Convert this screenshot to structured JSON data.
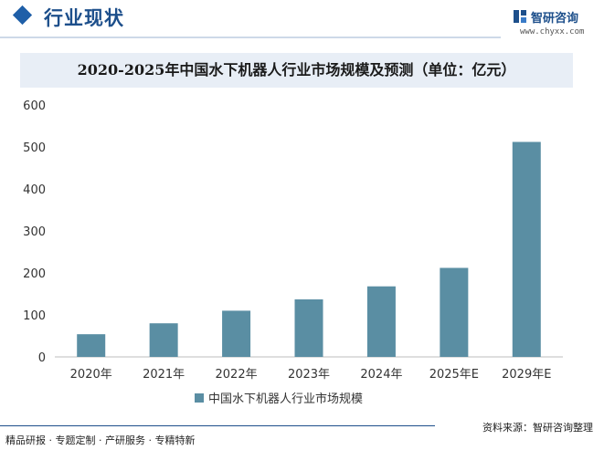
{
  "header": {
    "title": "行业现状",
    "logo_text": "智研咨询",
    "logo_url": "www.chyxx.com"
  },
  "footer": {
    "left_text": "精品研报 · 专题定制 · 产研服务 · 专精特新",
    "source_text": "资料来源：智研咨询整理"
  },
  "colors": {
    "accent": "#1d4f8b",
    "bar": "#5a8ea3",
    "title_band": "#e8eef6"
  },
  "chart_data": {
    "type": "bar",
    "title": "2020-2025年中国水下机器人行业市场规模及预测（单位：亿元）",
    "categories": [
      "2020年",
      "2021年",
      "2022年",
      "2023年",
      "2024年",
      "2025年E",
      "2029年E"
    ],
    "series": [
      {
        "name": "中国水下机器人行业市场规模",
        "values": [
          54,
          80,
          110,
          137,
          168,
          212,
          512
        ]
      }
    ],
    "ylim": [
      0,
      600
    ],
    "yticks": [
      0,
      100,
      200,
      300,
      400,
      500,
      600
    ],
    "grid": false,
    "legend_position": "bottom"
  }
}
